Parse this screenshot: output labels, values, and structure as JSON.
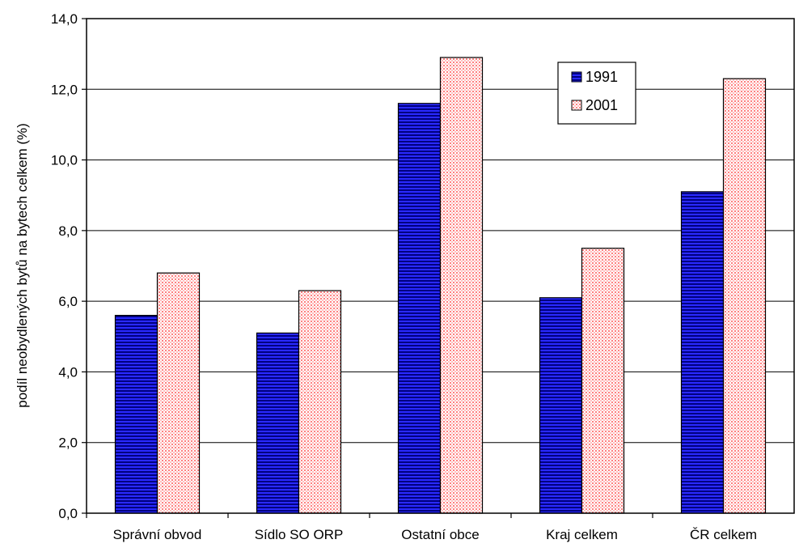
{
  "chart_data": {
    "type": "bar",
    "title": "",
    "xlabel": "",
    "ylabel": "podíl neobydlených bytů na bytech celkem (%)",
    "categories": [
      "Správní obvod",
      "Sídlo SO ORP",
      "Ostatní obce",
      "Kraj celkem",
      "ČR celkem"
    ],
    "series": [
      {
        "name": "1991",
        "values": [
          5.6,
          5.1,
          11.6,
          6.1,
          9.1
        ],
        "color": "#0000ff",
        "pattern": "horizontal-stripes"
      },
      {
        "name": "2001",
        "values": [
          6.8,
          6.3,
          12.9,
          7.5,
          12.3
        ],
        "color": "#ff6666",
        "pattern": "dotted"
      }
    ],
    "ylim": [
      0,
      14
    ],
    "yticks": [
      "0,0",
      "2,0",
      "4,0",
      "6,0",
      "8,0",
      "10,0",
      "12,0",
      "14,0"
    ],
    "grid": true,
    "legend_position": "top-right"
  }
}
